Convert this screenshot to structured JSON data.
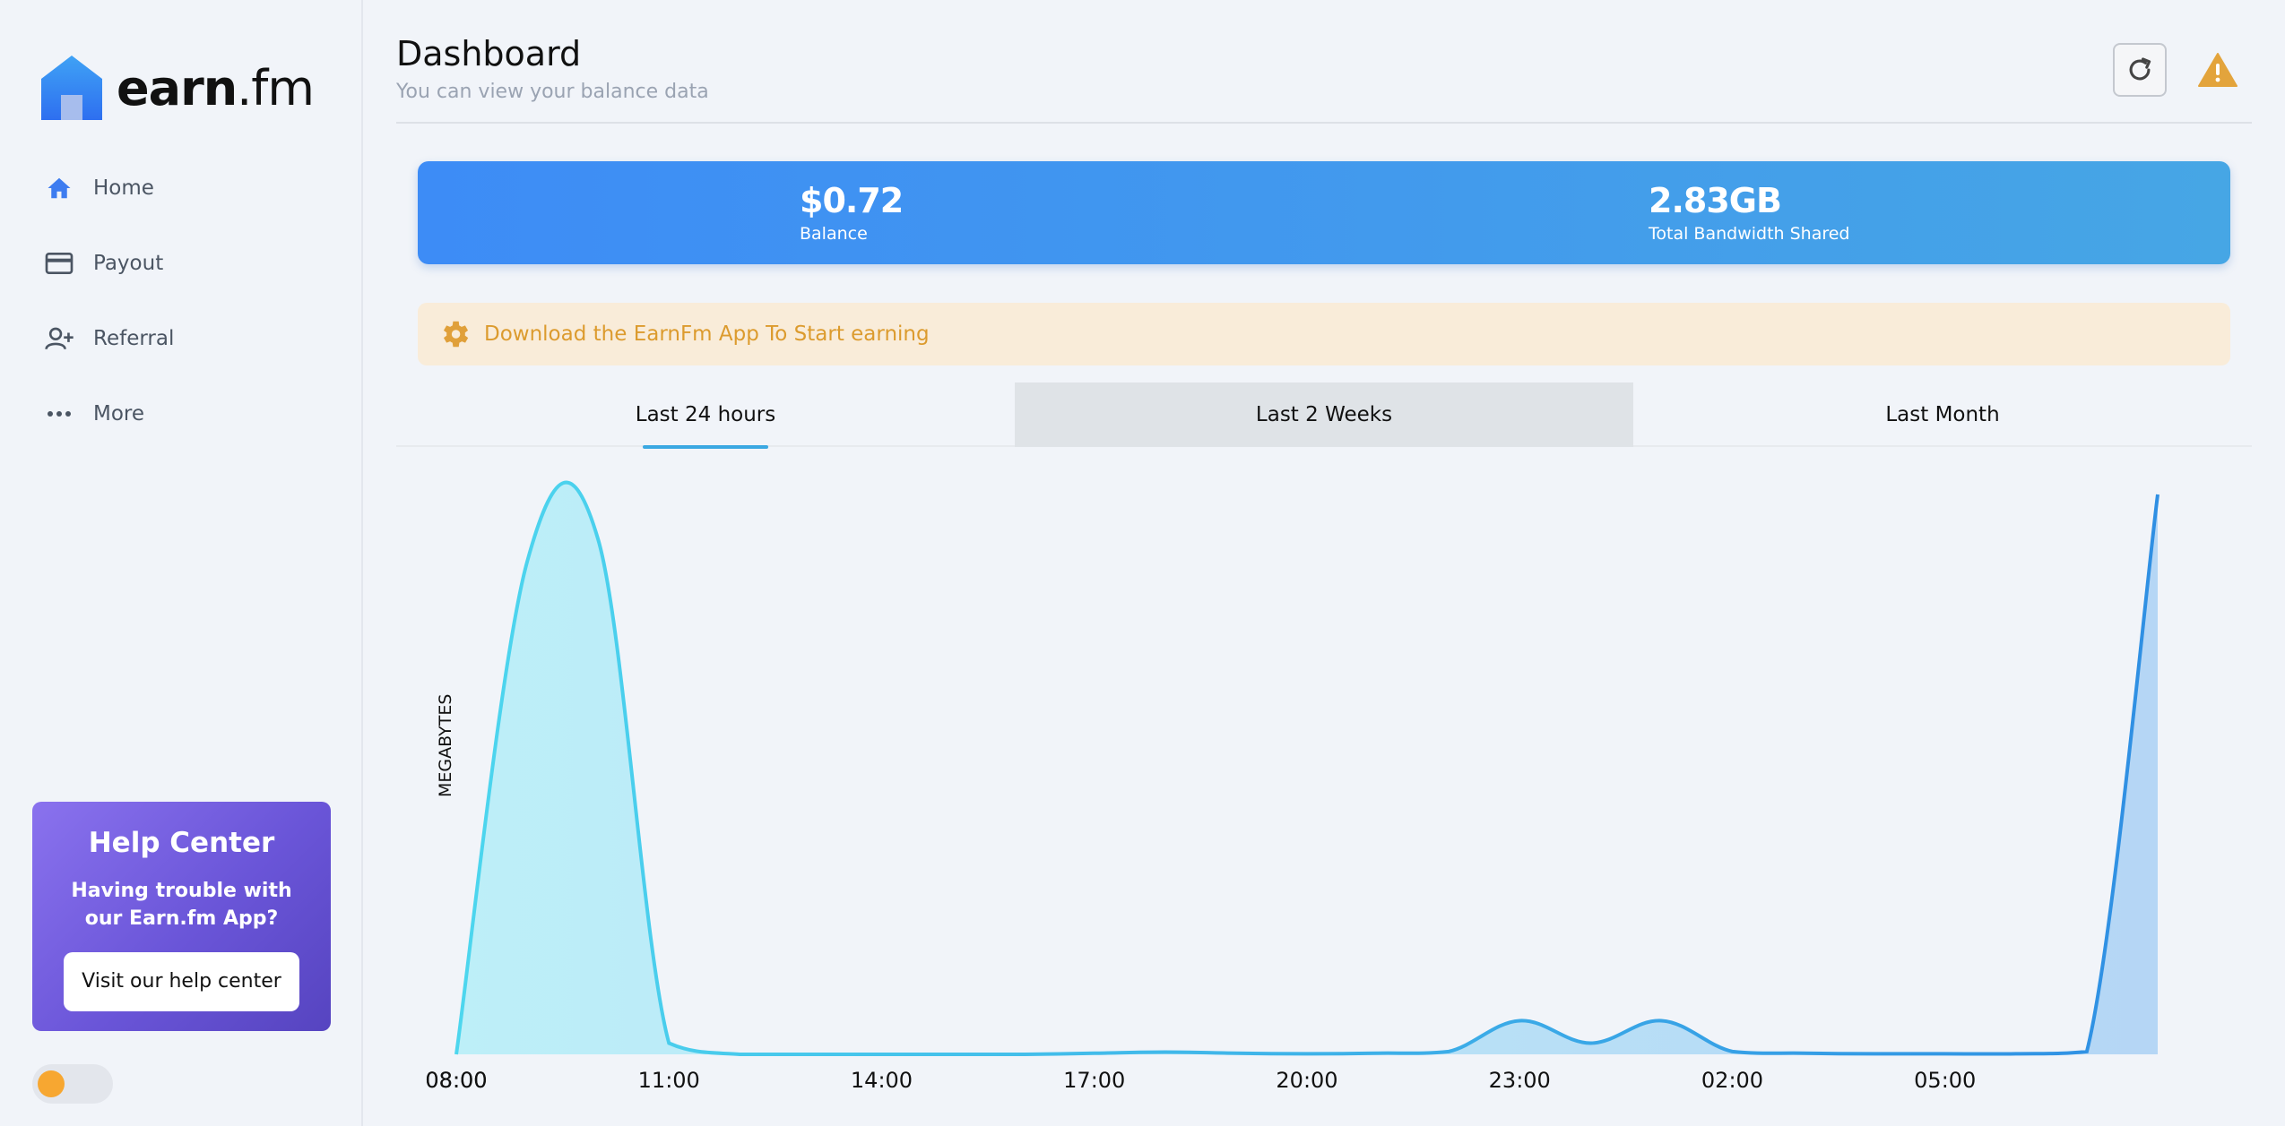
{
  "brand": {
    "name_bold": "earn",
    "name_light": ".fm"
  },
  "sidebar": {
    "items": [
      {
        "label": "Home",
        "icon": "home-icon"
      },
      {
        "label": "Payout",
        "icon": "card-icon"
      },
      {
        "label": "Referral",
        "icon": "user-plus-icon"
      },
      {
        "label": "More",
        "icon": "dots-icon"
      }
    ],
    "help": {
      "title": "Help Center",
      "text": "Having trouble with our Earn.fm App?",
      "button": "Visit our help center"
    }
  },
  "header": {
    "title": "Dashboard",
    "subtitle": "You can view your balance data"
  },
  "stats": {
    "balance_value": "$0.72",
    "balance_label": "Balance",
    "bandwidth_value": "2.83GB",
    "bandwidth_label": "Total Bandwidth Shared"
  },
  "notice": {
    "text": "Download the EarnFm App To Start earning"
  },
  "tabs": [
    {
      "label": "Last 24 hours"
    },
    {
      "label": "Last 2 Weeks"
    },
    {
      "label": "Last Month"
    }
  ],
  "colors": {
    "accent": "#3d8cf6",
    "notice_text": "#dc9b2e",
    "help_card": "#6a55d8",
    "chart_line_1": "#4dd6ee",
    "chart_line_2": "#2f8fe3"
  },
  "chart_data": {
    "type": "area",
    "ylabel": "MEGABYTES",
    "x": [
      "08:00",
      "09:00",
      "10:00",
      "11:00",
      "12:00",
      "13:00",
      "14:00",
      "15:00",
      "16:00",
      "17:00",
      "18:00",
      "19:00",
      "20:00",
      "21:00",
      "22:00",
      "23:00",
      "00:00",
      "01:00",
      "02:00",
      "03:00",
      "04:00",
      "05:00",
      "06:00",
      "07:00",
      "08:00"
    ],
    "xticks": [
      "08:00",
      "11:00",
      "14:00",
      "17:00",
      "20:00",
      "23:00",
      "02:00",
      "05:00",
      "08:00"
    ],
    "series": [
      {
        "values": [
          0,
          88,
          92,
          2,
          0,
          0,
          0,
          0,
          0,
          0.2,
          0.4,
          0.2,
          0.1,
          0.2,
          0.5,
          6,
          2,
          6,
          0.5,
          0.2,
          0.1,
          0.1,
          0.1,
          0.5,
          100
        ]
      }
    ],
    "ylim": [
      0,
      100
    ],
    "grid": false,
    "legend": "none"
  }
}
